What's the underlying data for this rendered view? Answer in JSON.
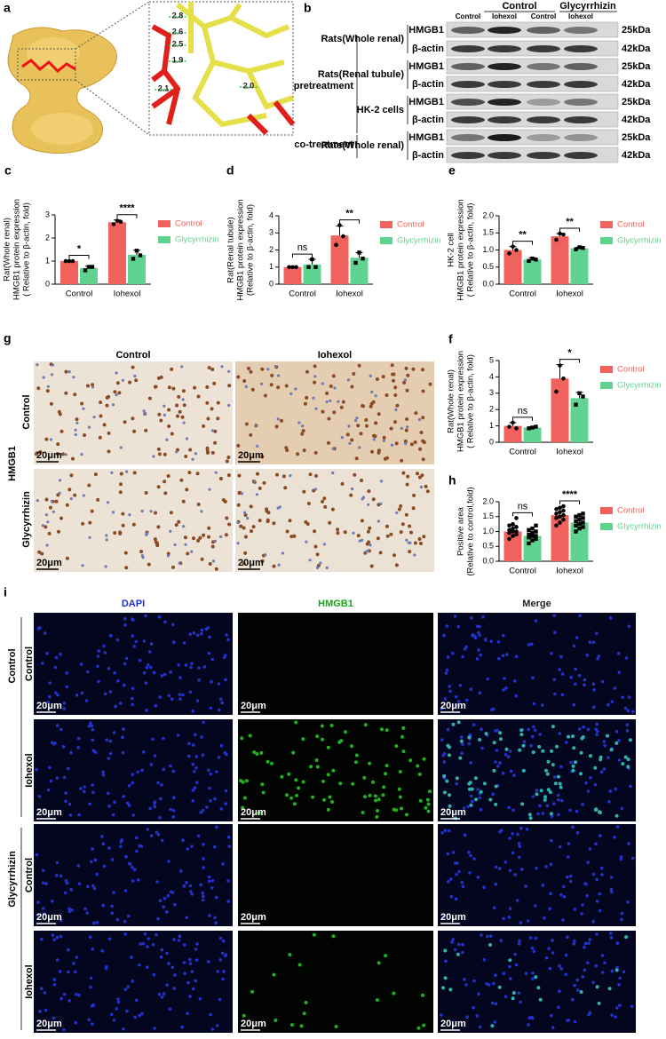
{
  "panel_a": {
    "label": "a",
    "distances": [
      "2.8",
      "2.6",
      "2.5",
      "1.9",
      "2.1",
      "2.0"
    ]
  },
  "panel_b": {
    "label": "b",
    "groups": [
      "Control",
      "Glycyrrhizin"
    ],
    "lanes": [
      "Control",
      "Iohexol",
      "Control",
      "Iohexol"
    ],
    "treatments": [
      "pretreatment",
      "co-treatment"
    ],
    "samples": [
      "Rats(Whole renal)",
      "Rats(Renal tubule)",
      "HK-2 cells",
      "Rats(Whole renal)"
    ],
    "proteins": [
      "HMGB1",
      "β-actin"
    ],
    "sizes": [
      "25kDa",
      "42kDa"
    ]
  },
  "chart_data": [
    {
      "type": "bar",
      "panel": "c",
      "ylabel": [
        "Rat(Whole renal)",
        "HMGB1 protein expression",
        "( Relative to β-actin, fold)"
      ],
      "categories": [
        "Control",
        "Iohexol"
      ],
      "ylim": [
        0,
        3
      ],
      "yticks": [
        0,
        1,
        2,
        3
      ],
      "significance": [
        "*",
        "****"
      ],
      "series": [
        {
          "name": "Control",
          "color": "#f0625b",
          "values": [
            1.0,
            2.68
          ],
          "errors": [
            0.02,
            0.1
          ],
          "points": [
            [
              1.0,
              1.0,
              1.0
            ],
            [
              2.6,
              2.75,
              2.7
            ]
          ]
        },
        {
          "name": "Glycyrrhizin",
          "color": "#5fd38f",
          "values": [
            0.7,
            1.27
          ],
          "errors": [
            0.08,
            0.2
          ],
          "points": [
            [
              0.6,
              0.75,
              0.75
            ],
            [
              1.1,
              1.45,
              1.25
            ]
          ]
        }
      ]
    },
    {
      "type": "bar",
      "panel": "d",
      "ylabel": [
        "Rat(Renal tubule)",
        "HMGB1 protein expression",
        "(Relative to β-actin, fold)"
      ],
      "categories": [
        "Control",
        "Iohexol"
      ],
      "ylim": [
        0,
        4
      ],
      "yticks": [
        0,
        1,
        2,
        3,
        4
      ],
      "significance": [
        "ns",
        "**"
      ],
      "series": [
        {
          "name": "Control",
          "color": "#f0625b",
          "values": [
            1.0,
            2.85
          ],
          "errors": [
            0.02,
            0.55
          ],
          "points": [
            [
              1.0,
              1.0,
              1.0
            ],
            [
              2.3,
              3.45,
              2.8
            ]
          ]
        },
        {
          "name": "Glycyrrhizin",
          "color": "#5fd38f",
          "values": [
            1.15,
            1.55
          ],
          "errors": [
            0.3,
            0.3
          ],
          "points": [
            [
              1.0,
              1.45,
              1.0
            ],
            [
              1.25,
              1.85,
              1.5
            ]
          ]
        }
      ]
    },
    {
      "type": "bar",
      "panel": "e",
      "ylabel": [
        "HK-2 cell",
        "HMGB1 protein expression",
        "( Relative to β-actin, fold)"
      ],
      "categories": [
        "Control",
        "Iohexol"
      ],
      "ylim": [
        0,
        2
      ],
      "yticks": [
        {
          "value": 0,
          "label": "0.0"
        },
        {
          "value": 0.5,
          "label": "0.5"
        },
        {
          "value": 1,
          "label": "1.0"
        },
        {
          "value": 1.5,
          "label": "1.5"
        },
        {
          "value": 2,
          "label": "2.0"
        }
      ],
      "significance": [
        "**",
        "**"
      ],
      "series": [
        {
          "name": "Control",
          "color": "#f0625b",
          "values": [
            1.0,
            1.4
          ],
          "errors": [
            0.1,
            0.08
          ],
          "points": [
            [
              0.9,
              1.1,
              1.0
            ],
            [
              1.3,
              1.48,
              1.45
            ]
          ]
        },
        {
          "name": "Glycyrrhizin",
          "color": "#5fd38f",
          "values": [
            0.72,
            1.05
          ],
          "errors": [
            0.05,
            0.03
          ],
          "points": [
            [
              0.68,
              0.75,
              0.72
            ],
            [
              1.02,
              1.08,
              1.06
            ]
          ]
        }
      ]
    },
    {
      "type": "bar",
      "panel": "f",
      "ylabel": [
        "Rat(Whole renal)",
        "HMGB1 protein expression",
        "( Relative to β-actin, fold)"
      ],
      "categories": [
        "Control",
        "Iohexol"
      ],
      "ylim": [
        0,
        5
      ],
      "yticks": [
        0,
        1,
        2,
        3,
        4,
        5
      ],
      "significance": [
        "ns",
        "*"
      ],
      "series": [
        {
          "name": "Control",
          "color": "#f0625b",
          "values": [
            1.0,
            3.9
          ],
          "errors": [
            0.2,
            0.85
          ],
          "points": [
            [
              0.95,
              1.2,
              0.85
            ],
            [
              3.1,
              4.7,
              3.9
            ]
          ]
        },
        {
          "name": "Glycyrrhizin",
          "color": "#5fd38f",
          "values": [
            0.9,
            2.7
          ],
          "errors": [
            0.05,
            0.35
          ],
          "points": [
            [
              0.85,
              0.9,
              0.95
            ],
            [
              2.3,
              3.0,
              2.8
            ]
          ]
        }
      ]
    },
    {
      "type": "bar",
      "panel": "h",
      "ylabel": [
        "Positive area",
        "(Relative to control,fold)"
      ],
      "categories": [
        "Control",
        "Iohexol"
      ],
      "ylim": [
        0,
        2
      ],
      "yticks": [
        {
          "value": 0,
          "label": "0.0"
        },
        {
          "value": 0.5,
          "label": "0.5"
        },
        {
          "value": 1,
          "label": "1.0"
        },
        {
          "value": 1.5,
          "label": "1.5"
        },
        {
          "value": 2,
          "label": "2.0"
        }
      ],
      "significance": [
        "ns",
        "****"
      ],
      "series": [
        {
          "name": "Control",
          "color": "#f0625b",
          "values": [
            1.0,
            1.55
          ],
          "errors": [
            0.2,
            0.25
          ],
          "points": [
            [
              0.75,
              0.85,
              0.9,
              0.95,
              1.0,
              1.0,
              1.05,
              1.1,
              1.15,
              1.2,
              1.25,
              1.45
            ],
            [
              1.2,
              1.3,
              1.4,
              1.45,
              1.5,
              1.55,
              1.6,
              1.65,
              1.7,
              1.75,
              1.8,
              1.85
            ]
          ]
        },
        {
          "name": "Glycyrrhizin",
          "color": "#5fd38f",
          "values": [
            0.85,
            1.3
          ],
          "errors": [
            0.15,
            0.2
          ],
          "points": [
            [
              0.6,
              0.7,
              0.75,
              0.8,
              0.85,
              0.85,
              0.9,
              0.95,
              1.0,
              1.05,
              1.1,
              1.2
            ],
            [
              1.0,
              1.1,
              1.15,
              1.2,
              1.25,
              1.3,
              1.35,
              1.4,
              1.45,
              1.5,
              1.55,
              1.6
            ]
          ]
        }
      ]
    }
  ],
  "panel_g": {
    "label": "g",
    "columns": [
      "Control",
      "Iohexol"
    ],
    "stain": "HMGB1",
    "rows": [
      "Control",
      "Glycyrrhizin"
    ],
    "scale_bar": "20μm"
  },
  "panel_i": {
    "label": "i",
    "columns": [
      "DAPI",
      "HMGB1",
      "Merge"
    ],
    "groups": [
      "Control",
      "Glycyrrhizin"
    ],
    "rows": [
      "Control",
      "Iohexol"
    ],
    "scale_bar": "20μm"
  }
}
